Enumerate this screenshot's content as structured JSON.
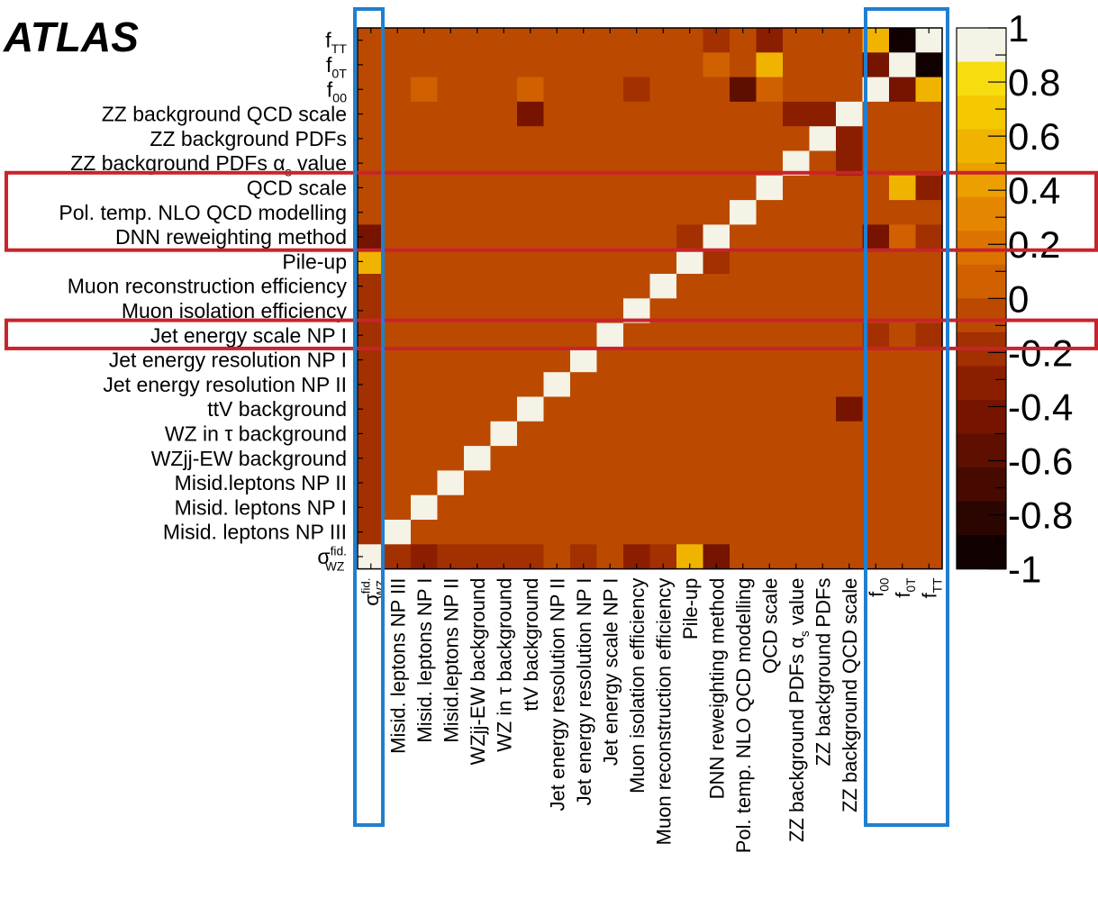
{
  "logo": "ATLAS",
  "chart_data": {
    "type": "heatmap",
    "title": "",
    "xlabel": "",
    "ylabel": "",
    "color_range": [
      -1,
      1
    ],
    "colorbar_ticks": [
      "1",
      "0.8",
      "0.6",
      "0.4",
      "0.2",
      "0",
      "-0.2",
      "-0.4",
      "-0.6",
      "-0.8",
      "-1"
    ],
    "row_labels": [
      {
        "base": "f",
        "sub": "TT"
      },
      {
        "base": "f",
        "sub": "0T"
      },
      {
        "base": "f",
        "sub": "00"
      },
      {
        "base": "ZZ background QCD scale"
      },
      {
        "base": "ZZ background PDFs"
      },
      {
        "base": "ZZ background PDFs α",
        "sub": "s",
        "after": " value"
      },
      {
        "base": "QCD scale"
      },
      {
        "base": "Pol. temp. NLO QCD modelling"
      },
      {
        "base": "DNN reweighting method"
      },
      {
        "base": "Pile-up"
      },
      {
        "base": "Muon reconstruction efficiency"
      },
      {
        "base": "Muon isolation efficiency"
      },
      {
        "base": "Jet energy scale NP I"
      },
      {
        "base": "Jet energy resolution NP I"
      },
      {
        "base": "Jet energy resolution NP II"
      },
      {
        "base": "ttV background"
      },
      {
        "base": "WZ in τ background"
      },
      {
        "base": "WZjj-EW background"
      },
      {
        "base": "Misid.leptons NP II"
      },
      {
        "base": "Misid. leptons NP I"
      },
      {
        "base": "Misid. leptons NP III"
      },
      {
        "base": "σ",
        "sup": "fid.",
        "sub": "WZ"
      }
    ],
    "col_labels": [
      {
        "base": "σ",
        "sup": "fid.",
        "sub": "WZ"
      },
      {
        "base": "Misid. leptons NP III"
      },
      {
        "base": "Misid. leptons NP I"
      },
      {
        "base": "Misid.leptons NP II"
      },
      {
        "base": "WZjj-EW background"
      },
      {
        "base": "WZ in τ background"
      },
      {
        "base": "ttV background"
      },
      {
        "base": "Jet energy resolution NP II"
      },
      {
        "base": "Jet energy resolution NP I"
      },
      {
        "base": "Jet energy scale NP I"
      },
      {
        "base": "Muon isolation efficiency"
      },
      {
        "base": "Muon reconstruction efficiency"
      },
      {
        "base": "Pile-up"
      },
      {
        "base": "DNN reweighting method"
      },
      {
        "base": "Pol. temp. NLO QCD modelling"
      },
      {
        "base": "QCD scale"
      },
      {
        "base": "ZZ background PDFs α",
        "sub": "s",
        "after": " value"
      },
      {
        "base": "ZZ background PDFs"
      },
      {
        "base": "ZZ background QCD scale"
      },
      {
        "base": "f",
        "sub": "00"
      },
      {
        "base": "f",
        "sub": "0T"
      },
      {
        "base": "f",
        "sub": "TT"
      }
    ],
    "values": [
      [
        0.02,
        -0.05,
        0,
        0,
        0,
        0,
        0,
        0,
        0,
        0,
        0,
        -0.05,
        0,
        -0.2,
        -0.05,
        -0.3,
        0,
        0,
        -0.05,
        0.6,
        -0.9,
        1.0
      ],
      [
        0.02,
        -0.05,
        -0.05,
        0,
        0,
        0,
        -0.05,
        0,
        0,
        0,
        0,
        -0.05,
        0,
        0.15,
        0,
        0.65,
        -0.05,
        -0.05,
        0,
        -0.45,
        1.0,
        -0.9
      ],
      [
        0.02,
        -0.05,
        0.1,
        0,
        0,
        0,
        0.1,
        0,
        -0.05,
        -0.05,
        -0.15,
        0,
        -0.05,
        -0.05,
        -0.5,
        0.1,
        -0.05,
        -0.05,
        -0.05,
        1.0,
        -0.45,
        0.6
      ],
      [
        0.02,
        -0.05,
        -0.05,
        -0.05,
        0,
        0,
        -0.35,
        0,
        0,
        -0.05,
        0,
        0,
        0,
        0,
        0,
        0,
        -0.3,
        -0.3,
        1.0,
        -0.05,
        0,
        -0.05
      ],
      [
        0.02,
        -0.05,
        -0.05,
        -0.05,
        -0.05,
        -0.05,
        -0.05,
        0,
        0,
        -0.05,
        0,
        0,
        0,
        0,
        0,
        -0.05,
        -0.05,
        1.0,
        -0.3,
        -0.05,
        -0.05,
        0
      ],
      [
        0.02,
        -0.05,
        -0.05,
        -0.05,
        -0.05,
        -0.05,
        -0.05,
        0,
        0,
        0,
        -0.05,
        0,
        -0.05,
        -0.05,
        0,
        -0.05,
        1.0,
        -0.05,
        -0.3,
        -0.05,
        -0.05,
        0
      ],
      [
        -0.05,
        -0.05,
        -0.05,
        0,
        -0.05,
        0,
        -0.05,
        -0.05,
        -0.05,
        -0.05,
        -0.05,
        -0.05,
        0,
        0,
        0,
        1.0,
        0,
        -0.05,
        -0.05,
        -0.05,
        0.6,
        -0.3
      ],
      [
        0.02,
        -0.05,
        -0.05,
        0,
        0,
        -0.05,
        0,
        -0.05,
        -0.05,
        -0.05,
        -0.05,
        -0.05,
        0,
        0,
        1.0,
        0,
        -0.05,
        -0.05,
        -0.05,
        0.05,
        0,
        -0.05
      ],
      [
        -0.45,
        -0.05,
        -0.05,
        -0.05,
        -0.05,
        -0.05,
        -0.05,
        -0.05,
        -0.05,
        -0.05,
        -0.05,
        -0.05,
        -0.15,
        1.0,
        0,
        -0.05,
        -0.05,
        0,
        -0.05,
        -0.45,
        0.1,
        -0.15
      ],
      [
        0.6,
        -0.05,
        -0.05,
        -0.05,
        -0.05,
        -0.05,
        -0.05,
        -0.05,
        -0.05,
        -0.05,
        0,
        -0.05,
        1.0,
        -0.15,
        0,
        -0.05,
        -0.05,
        -0.05,
        -0.05,
        -0.05,
        -0.05,
        0
      ],
      [
        -0.15,
        -0.05,
        -0.05,
        -0.05,
        0,
        0,
        -0.05,
        0,
        0,
        0,
        -0.05,
        1.0,
        0,
        -0.05,
        0,
        0,
        -0.05,
        -0.05,
        -0.05,
        -0.05,
        0,
        -0.05
      ],
      [
        -0.2,
        -0.05,
        -0.05,
        -0.05,
        0,
        0,
        0,
        0,
        0,
        -0.05,
        1.0,
        0,
        0,
        -0.05,
        -0.05,
        -0.05,
        0,
        0,
        0,
        -0.05,
        0,
        -0.05
      ],
      [
        -0.1,
        -0.05,
        -0.05,
        -0.05,
        -0.05,
        -0.05,
        -0.05,
        -0.05,
        -0.05,
        1.0,
        -0.05,
        -0.05,
        -0.05,
        -0.05,
        -0.05,
        -0.05,
        -0.05,
        -0.05,
        -0.05,
        -0.15,
        -0.05,
        -0.1
      ],
      [
        -0.1,
        0,
        -0.05,
        0,
        -0.05,
        -0.05,
        -0.05,
        0,
        1.0,
        -0.05,
        -0.05,
        -0.05,
        -0.05,
        -0.05,
        -0.05,
        -0.05,
        -0.05,
        -0.05,
        -0.05,
        -0.05,
        -0.05,
        -0.05
      ],
      [
        -0.1,
        -0.05,
        -0.05,
        -0.05,
        -0.05,
        -0.05,
        -0.05,
        1.0,
        0,
        -0.05,
        -0.05,
        -0.05,
        -0.05,
        -0.05,
        -0.05,
        -0.05,
        -0.05,
        -0.05,
        -0.05,
        -0.05,
        -0.05,
        -0.05
      ],
      [
        -0.1,
        -0.05,
        -0.05,
        -0.05,
        0,
        -0.05,
        1.0,
        -0.05,
        -0.05,
        -0.05,
        -0.05,
        -0.05,
        -0.05,
        0,
        -0.05,
        -0.05,
        -0.05,
        -0.05,
        -0.35,
        0.05,
        -0.05,
        -0.05
      ],
      [
        -0.1,
        -0.05,
        -0.05,
        -0.05,
        -0.05,
        1.0,
        -0.05,
        -0.05,
        -0.05,
        0,
        -0.05,
        0,
        0,
        0,
        0,
        0,
        -0.05,
        -0.05,
        -0.05,
        -0.05,
        -0.05,
        -0.05
      ],
      [
        -0.1,
        -0.05,
        -0.05,
        -0.05,
        1.0,
        -0.05,
        -0.05,
        0,
        0,
        0,
        0,
        0,
        0,
        0,
        0,
        -0.05,
        0,
        0,
        0,
        0,
        -0.05,
        -0.05
      ],
      [
        -0.1,
        -0.05,
        -0.05,
        1.0,
        -0.05,
        -0.05,
        -0.05,
        -0.05,
        -0.05,
        -0.05,
        -0.05,
        -0.05,
        0,
        0,
        0,
        0,
        0,
        0,
        0,
        -0.05,
        -0.05,
        -0.05
      ],
      [
        -0.15,
        -0.05,
        1.0,
        -0.05,
        -0.05,
        -0.05,
        0,
        -0.05,
        -0.05,
        0,
        0,
        0,
        0,
        0,
        0,
        0,
        0,
        -0.05,
        0,
        0.05,
        -0.05,
        -0.05
      ],
      [
        -0.15,
        1.0,
        -0.05,
        -0.05,
        -0.05,
        -0.05,
        0,
        -0.05,
        0,
        -0.05,
        -0.05,
        -0.05,
        0,
        0,
        -0.05,
        -0.05,
        -0.05,
        -0.05,
        -0.05,
        0,
        -0.05,
        -0.05
      ],
      [
        1.0,
        -0.1,
        -0.25,
        -0.15,
        -0.15,
        -0.1,
        -0.1,
        -0.05,
        -0.1,
        0,
        -0.25,
        -0.1,
        0.6,
        -0.35,
        -0.05,
        -0.05,
        -0.05,
        -0.05,
        -0.05,
        0,
        -0.05,
        -0.05
      ]
    ]
  },
  "colors": {
    "highlight_red": "#c8232c",
    "highlight_blue": "#1f7fd0",
    "palette": [
      "#110000",
      "#2b0500",
      "#470a00",
      "#5e0f00",
      "#761400",
      "#8c1e00",
      "#a33000",
      "#bb4a00",
      "#d06000",
      "#dc7300",
      "#e58600",
      "#ec9f00",
      "#f0b400",
      "#f4c800",
      "#f7dc10",
      "#f5f2e6"
    ]
  }
}
